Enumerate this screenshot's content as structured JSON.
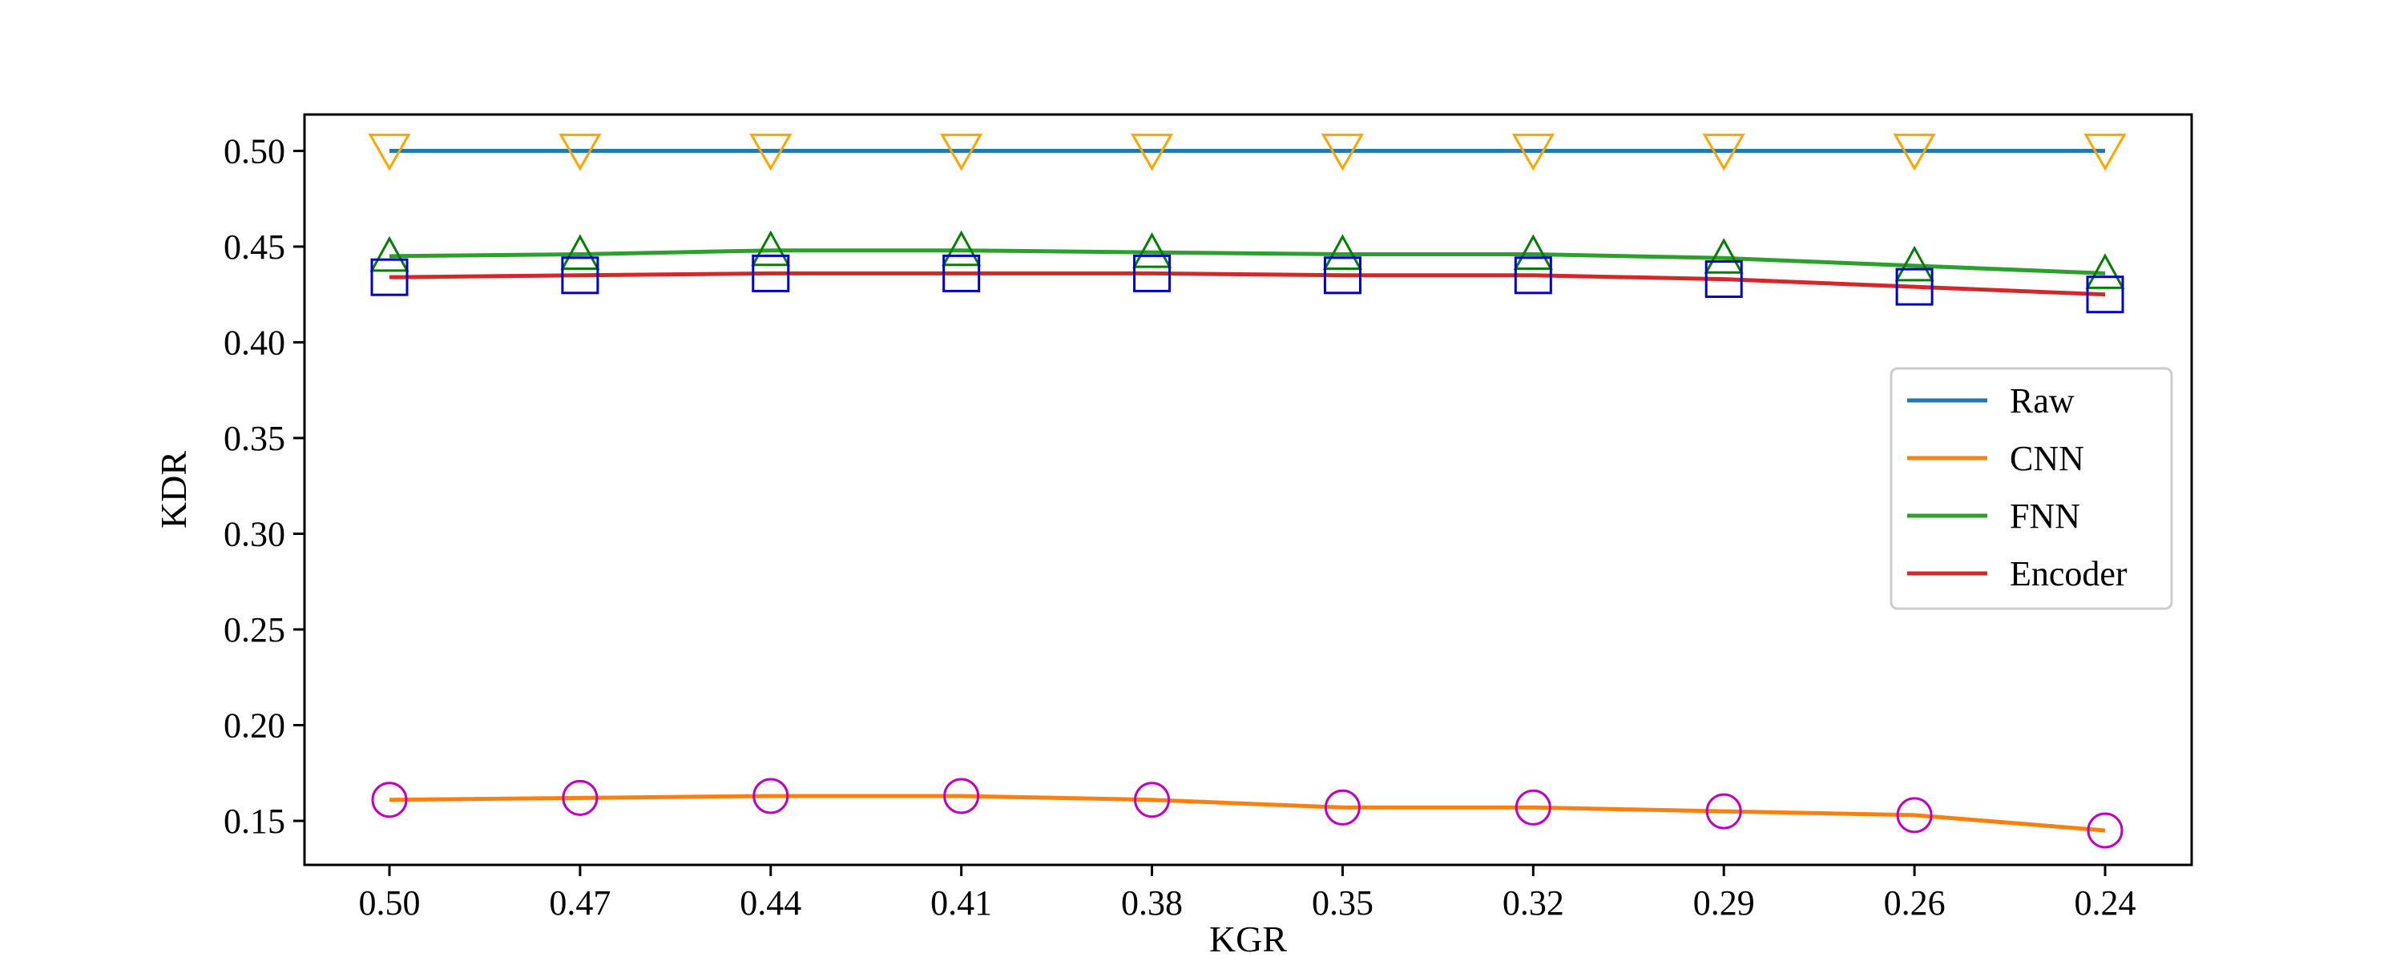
{
  "chart_data": {
    "type": "line",
    "xlabel": "KGR",
    "ylabel": "KDR",
    "categories": [
      "0.50",
      "0.47",
      "0.44",
      "0.41",
      "0.38",
      "0.35",
      "0.32",
      "0.29",
      "0.26",
      "0.24"
    ],
    "yticks": [
      "0.15",
      "0.20",
      "0.25",
      "0.30",
      "0.35",
      "0.40",
      "0.45",
      "0.50"
    ],
    "ylim": [
      0.127,
      0.519
    ],
    "grid": false,
    "legend_position": "center-right",
    "series": [
      {
        "name": "Raw",
        "color": "#1f77b4",
        "marker": "triangle-down",
        "marker_color": "#ffa500",
        "values": [
          0.5,
          0.5,
          0.5,
          0.5,
          0.5,
          0.5,
          0.5,
          0.5,
          0.5,
          0.5
        ]
      },
      {
        "name": "CNN",
        "color": "#ff7f0e",
        "marker": "circle",
        "marker_color": "#bf00bf",
        "values": [
          0.161,
          0.162,
          0.163,
          0.163,
          0.161,
          0.157,
          0.157,
          0.155,
          0.153,
          0.145
        ]
      },
      {
        "name": "FNN",
        "color": "#2ca02c",
        "marker": "triangle-up",
        "marker_color": "#008000",
        "values": [
          0.445,
          0.446,
          0.448,
          0.448,
          0.447,
          0.446,
          0.446,
          0.444,
          0.44,
          0.436
        ]
      },
      {
        "name": "Encoder",
        "color": "#d62728",
        "marker": "square",
        "marker_color": "#0000cc",
        "values": [
          0.434,
          0.435,
          0.436,
          0.436,
          0.436,
          0.435,
          0.435,
          0.433,
          0.429,
          0.425
        ]
      }
    ]
  }
}
